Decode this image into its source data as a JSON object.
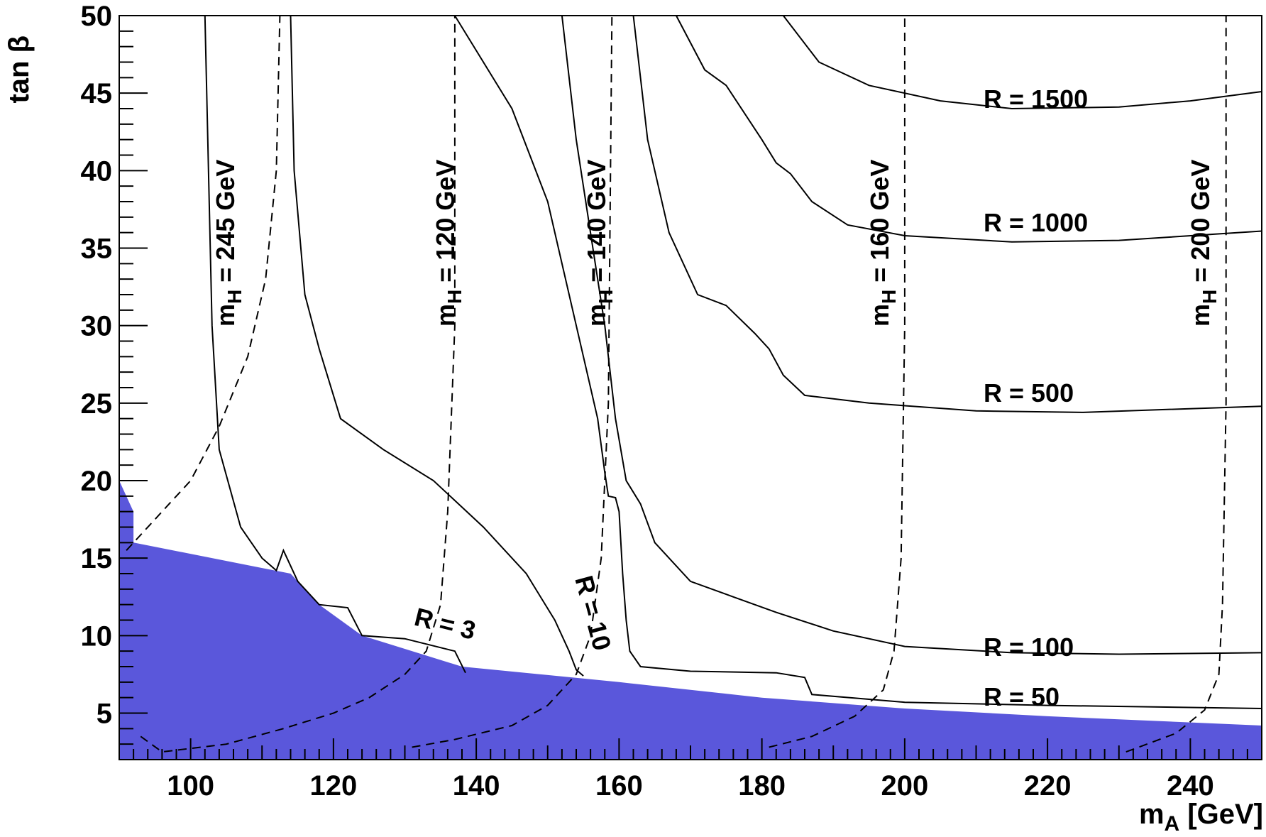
{
  "chart_data": {
    "type": "line",
    "xlabel": "m_A [GeV]",
    "xlabel_main": "m",
    "xlabel_sub": "A",
    "xlabel_unit": " [GeV]",
    "ylabel": "tan β",
    "xlim": [
      90,
      250
    ],
    "ylim": [
      2,
      50
    ],
    "x_ticks": [
      100,
      120,
      140,
      160,
      180,
      200,
      220,
      240
    ],
    "x_tick_labels": [
      "100",
      "120",
      "140",
      "160",
      "180",
      "200",
      "220",
      "240"
    ],
    "y_ticks": [
      5,
      10,
      15,
      20,
      25,
      30,
      35,
      40,
      45,
      50
    ],
    "y_tick_labels": [
      "5",
      "10",
      "15",
      "20",
      "25",
      "30",
      "35",
      "40",
      "45",
      "50"
    ],
    "excluded_region": {
      "color": "#5a57db",
      "boundary": [
        [
          90,
          20
        ],
        [
          92,
          18
        ],
        [
          92,
          16
        ],
        [
          114,
          14
        ],
        [
          118,
          12
        ],
        [
          124,
          10
        ],
        [
          138,
          8
        ],
        [
          160,
          7
        ],
        [
          180,
          6
        ],
        [
          200,
          5.3
        ],
        [
          220,
          4.8
        ],
        [
          240,
          4.4
        ],
        [
          250,
          4.2
        ]
      ]
    },
    "contours": [
      {
        "name": "R = 3",
        "label_text": "R = 3",
        "points": [
          [
            102,
            50
          ],
          [
            103,
            30
          ],
          [
            104,
            22
          ],
          [
            107,
            17
          ],
          [
            110,
            15
          ],
          [
            112,
            14.2
          ],
          [
            113,
            15.5
          ],
          [
            115,
            13.5
          ],
          [
            118,
            12
          ],
          [
            122,
            11.8
          ],
          [
            124,
            10
          ],
          [
            130,
            9.8
          ],
          [
            137,
            9
          ],
          [
            138.5,
            7.6
          ]
        ]
      },
      {
        "name": "R = 10",
        "label_text": "R = 10",
        "points": [
          [
            114,
            50
          ],
          [
            114.5,
            40
          ],
          [
            116,
            32
          ],
          [
            118,
            28.5
          ],
          [
            121,
            24
          ],
          [
            127,
            22
          ],
          [
            134,
            20
          ],
          [
            141,
            17
          ],
          [
            147,
            14
          ],
          [
            151,
            11
          ],
          [
            153,
            9
          ],
          [
            154,
            7.8
          ],
          [
            155,
            7.4
          ]
        ]
      },
      {
        "name": "R = 50",
        "label_text": "R = 50",
        "points": [
          [
            137,
            50
          ],
          [
            145,
            44
          ],
          [
            150,
            38
          ],
          [
            155,
            28
          ],
          [
            157,
            24
          ],
          [
            158,
            20.5
          ],
          [
            158.5,
            19
          ],
          [
            159.5,
            18.9
          ],
          [
            160,
            18
          ],
          [
            160.5,
            14
          ],
          [
            161,
            11
          ],
          [
            161.5,
            9
          ],
          [
            163,
            8
          ],
          [
            170,
            7.7
          ],
          [
            182,
            7.6
          ],
          [
            186,
            7.3
          ],
          [
            187,
            6.2
          ],
          [
            200,
            5.7
          ],
          [
            220,
            5.5
          ],
          [
            250,
            5.3
          ]
        ]
      },
      {
        "name": "R = 100",
        "label_text": "R = 100",
        "points": [
          [
            152,
            50
          ],
          [
            154,
            42
          ],
          [
            156,
            36
          ],
          [
            158,
            30
          ],
          [
            159.5,
            24
          ],
          [
            161,
            20
          ],
          [
            163,
            18.5
          ],
          [
            165,
            16
          ],
          [
            170,
            13.5
          ],
          [
            176,
            12.5
          ],
          [
            182,
            11.5
          ],
          [
            190,
            10.3
          ],
          [
            200,
            9.3
          ],
          [
            215,
            8.9
          ],
          [
            230,
            8.8
          ],
          [
            250,
            8.9
          ]
        ]
      },
      {
        "name": "R = 500",
        "label_text": "R = 500",
        "points": [
          [
            162,
            50
          ],
          [
            164,
            42
          ],
          [
            167,
            36
          ],
          [
            171,
            32
          ],
          [
            175,
            31.3
          ],
          [
            179,
            29.5
          ],
          [
            181,
            28.5
          ],
          [
            183,
            26.8
          ],
          [
            186,
            25.5
          ],
          [
            195,
            25
          ],
          [
            210,
            24.5
          ],
          [
            225,
            24.4
          ],
          [
            250,
            24.8
          ]
        ]
      },
      {
        "name": "R = 1000",
        "label_text": "R = 1000",
        "points": [
          [
            168,
            50
          ],
          [
            172,
            46.5
          ],
          [
            175,
            45.5
          ],
          [
            180,
            42
          ],
          [
            182,
            40.5
          ],
          [
            184,
            39.8
          ],
          [
            187,
            38
          ],
          [
            192,
            36.5
          ],
          [
            200,
            35.8
          ],
          [
            215,
            35.4
          ],
          [
            230,
            35.5
          ],
          [
            250,
            36.1
          ]
        ]
      },
      {
        "name": "R = 1500",
        "label_text": "R = 1500",
        "points": [
          [
            183,
            50
          ],
          [
            188,
            47
          ],
          [
            195,
            45.5
          ],
          [
            205,
            44.5
          ],
          [
            215,
            44
          ],
          [
            230,
            44.1
          ],
          [
            240,
            44.5
          ],
          [
            250,
            45.1
          ]
        ]
      }
    ],
    "mh_contours": [
      {
        "name": "m_H = 120 GeV",
        "label_main": "m",
        "label_sub": "H",
        "label_rest": " = 120 GeV",
        "points": [
          [
            93,
            3.5
          ],
          [
            96,
            2.5
          ],
          [
            105,
            3
          ],
          [
            113,
            4
          ],
          [
            120,
            5
          ],
          [
            125,
            6
          ],
          [
            130,
            7.5
          ],
          [
            133,
            9
          ],
          [
            135,
            12
          ],
          [
            136,
            18
          ],
          [
            137,
            30
          ],
          [
            137,
            50
          ]
        ]
      },
      {
        "name": "m_H = 140 GeV",
        "label_main": "m",
        "label_sub": "H",
        "label_rest": " = 140 GeV",
        "points": [
          [
            131,
            2.8
          ],
          [
            137,
            3.3
          ],
          [
            145,
            4.2
          ],
          [
            150,
            5.5
          ],
          [
            154,
            7.5
          ],
          [
            156,
            10
          ],
          [
            157.5,
            15
          ],
          [
            158.5,
            25
          ],
          [
            159,
            50
          ]
        ]
      },
      {
        "name": "m_H = 160 GeV",
        "label_main": "m",
        "label_sub": "H",
        "label_rest": " = 160 GeV",
        "points": [
          [
            181,
            2.8
          ],
          [
            187,
            3.5
          ],
          [
            193,
            4.8
          ],
          [
            197,
            6.5
          ],
          [
            198.5,
            9
          ],
          [
            199.5,
            15
          ],
          [
            200,
            30
          ],
          [
            200,
            50
          ]
        ]
      },
      {
        "name": "m_H = 200 GeV",
        "label_main": "m",
        "label_sub": "H",
        "label_rest": " = 200 GeV",
        "points": [
          [
            231,
            2.5
          ],
          [
            238,
            3.7
          ],
          [
            242,
            5.2
          ],
          [
            244,
            7.5
          ],
          [
            244.5,
            12
          ],
          [
            245,
            25
          ],
          [
            245,
            50
          ]
        ]
      },
      {
        "name": "m_H = 245 GeV",
        "label_main": "m",
        "label_sub": "H",
        "label_rest": " = 245 GeV",
        "points": [
          [
            91,
            15.5
          ],
          [
            95,
            17.5
          ],
          [
            100,
            20
          ],
          [
            104,
            23.5
          ],
          [
            108,
            28
          ],
          [
            110.5,
            33
          ],
          [
            112,
            40
          ],
          [
            112.5,
            50
          ]
        ]
      }
    ]
  }
}
